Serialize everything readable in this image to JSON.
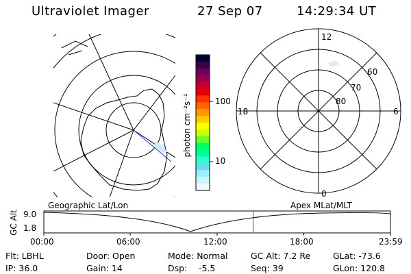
{
  "header": {
    "title": "Ultraviolet Imager",
    "date": "27 Sep 07",
    "time": "14:29:34 UT"
  },
  "colorbar": {
    "label": "photon cm⁻²s⁻¹",
    "ticks": [
      "100",
      "10"
    ],
    "colors": [
      "#000033",
      "#3b0044",
      "#6b0060",
      "#990050",
      "#c4002a",
      "#e60000",
      "#ff3300",
      "#ff6600",
      "#ff9900",
      "#ffcc00",
      "#ffff00",
      "#ccff00",
      "#66ff33",
      "#00ff66",
      "#00ff99",
      "#33ffcc",
      "#66ddee",
      "#99eeff",
      "#ccf4ff",
      "#eefaff"
    ]
  },
  "polar_plot": {
    "mlt_labels": {
      "top": "12",
      "left": "18",
      "right": "6",
      "bottom": "0"
    },
    "lat_labels": [
      "60",
      "70",
      "80"
    ]
  },
  "timeline": {
    "left_label": "Geographic Lat/Lon",
    "right_label": "Apex MLat/MLT",
    "axis_title": "GC Alt",
    "y_ticks": [
      "9.0",
      "1.8"
    ],
    "x_ticks": [
      "00:00",
      "06:00",
      "12:00",
      "18:00",
      "23:59"
    ],
    "marker_time": "14:29",
    "marker_color": "#ff0000"
  },
  "footer": {
    "flt": "Flt: LBHL",
    "ip": "IP: 36.0",
    "door": "Door: Open",
    "gain": "Gain: 14",
    "mode": "Mode: Normal",
    "dsp_label": "Dsp:",
    "dsp_value": "-5.5",
    "gc_alt": "GC Alt: 7.2 Re",
    "seq": "Seq: 39",
    "glat": "GLat: -73.6",
    "glon": "GLon: 120.8"
  }
}
